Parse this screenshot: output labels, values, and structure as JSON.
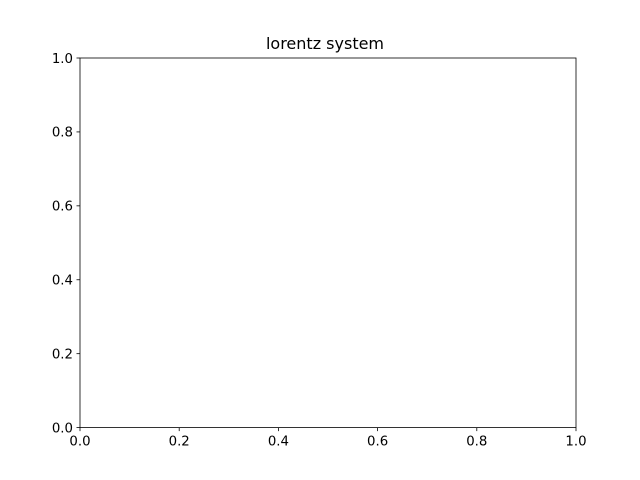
{
  "chart_data": {
    "type": "line",
    "title": "lorentz system",
    "xlabel": "",
    "ylabel": "",
    "xlim": [
      0.0,
      1.0
    ],
    "ylim": [
      0.0,
      1.0
    ],
    "x_ticks": [
      "0.0",
      "0.2",
      "0.4",
      "0.6",
      "0.8",
      "1.0"
    ],
    "y_ticks": [
      "0.0",
      "0.2",
      "0.4",
      "0.6",
      "0.8",
      "1.0"
    ],
    "series": [],
    "grid": false,
    "legend": "none",
    "colors": {
      "axes": "#000000",
      "background": "#ffffff"
    }
  }
}
